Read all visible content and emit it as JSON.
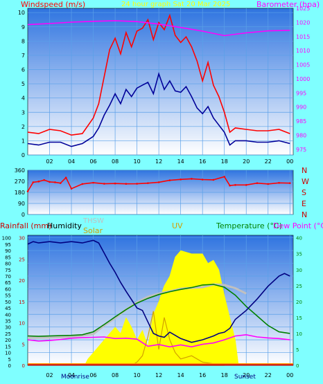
{
  "colors": {
    "frame": "#7fffff",
    "plot_top": "#2f74e0",
    "plot_bottom": "#ffffff",
    "grid": "#5aa0e8",
    "gust": "#ff0000",
    "wind": "#000099",
    "baro": "#ff00ff",
    "rain": "#cc0000",
    "humidity": "#000080",
    "solar": "#ffff00",
    "uv": "#d2a000",
    "temperature": "#008000",
    "dewpoint": "#ff00ff",
    "thsw": "#c0c0c0",
    "sun": "#ff9900",
    "dark_text": "#000000"
  },
  "chart_data": [
    {
      "type": "line",
      "title": "24 hour graph Sat   20 Mar 2025",
      "ylabel": "Windspeed (m/s)",
      "y2label": "Barometer (hpa)",
      "x_ticks": [
        "02",
        "04",
        "06",
        "08",
        "10",
        "12",
        "14",
        "16",
        "18",
        "20",
        "22",
        "00"
      ],
      "x_tick_hours": [
        2,
        4,
        6,
        8,
        10,
        12,
        14,
        16,
        18,
        20,
        22,
        24
      ],
      "xlim": [
        0,
        24.3
      ],
      "ylim": [
        0,
        10.3
      ],
      "y_ticks": [
        "0",
        "1",
        "2",
        "3",
        "4",
        "5",
        "6",
        "7",
        "8",
        "9",
        "10"
      ],
      "y2lim": [
        973,
        1025
      ],
      "y2_ticks": [
        "975",
        "980",
        "985",
        "990",
        "995",
        "1000",
        "1005",
        "1010",
        "1015",
        "1020",
        "1025"
      ],
      "grid": true,
      "series": [
        {
          "role": "gust",
          "x": [
            0,
            1,
            2,
            3,
            4,
            5,
            6,
            6.5,
            7,
            7.5,
            8,
            8.5,
            9,
            9.5,
            10,
            10.5,
            11,
            11.5,
            12,
            12.5,
            13,
            13.5,
            14,
            14.5,
            15,
            15.5,
            16,
            16.5,
            17,
            17.5,
            18,
            18.5,
            19,
            20,
            21,
            22,
            23,
            24
          ],
          "values": [
            1.6,
            1.5,
            1.8,
            1.7,
            1.4,
            1.5,
            2.6,
            3.6,
            5.5,
            7.4,
            8.2,
            7.1,
            8.6,
            7.6,
            8.7,
            8.9,
            9.5,
            8.1,
            9.3,
            8.8,
            9.8,
            8.4,
            7.9,
            8.3,
            7.6,
            6.6,
            5.2,
            6.5,
            4.9,
            4.1,
            3.0,
            1.6,
            1.9,
            1.8,
            1.7,
            1.7,
            1.8,
            1.5
          ]
        },
        {
          "role": "wind",
          "x": [
            0,
            1,
            2,
            3,
            4,
            5,
            6,
            6.5,
            7,
            7.5,
            8,
            8.5,
            9,
            9.5,
            10,
            10.5,
            11,
            11.5,
            12,
            12.5,
            13,
            13.5,
            14,
            14.5,
            15,
            15.5,
            16,
            16.5,
            17,
            17.5,
            18,
            18.5,
            19,
            20,
            21,
            22,
            23,
            24
          ],
          "values": [
            0.8,
            0.7,
            0.9,
            0.9,
            0.6,
            0.8,
            1.3,
            1.9,
            2.8,
            3.5,
            4.3,
            3.6,
            4.6,
            4.1,
            4.7,
            4.9,
            5.1,
            4.3,
            5.7,
            4.6,
            5.2,
            4.5,
            4.4,
            4.8,
            4.1,
            3.3,
            2.9,
            3.4,
            2.6,
            2.1,
            1.6,
            0.7,
            1.0,
            1.0,
            0.9,
            0.9,
            1.0,
            0.8
          ]
        },
        {
          "role": "baro",
          "x": [
            0,
            2,
            4,
            6,
            8,
            10,
            12,
            14,
            16,
            18,
            20,
            22,
            24
          ],
          "values": [
            1019.2,
            1019.6,
            1020.1,
            1020.4,
            1020.6,
            1020.3,
            1019.4,
            1018.2,
            1016.9,
            1015.3,
            1016.3,
            1017.0,
            1017.2
          ]
        }
      ]
    },
    {
      "type": "scatter",
      "ylim": [
        0,
        360
      ],
      "y_ticks": [
        "0",
        "90",
        "180",
        "270",
        "360"
      ],
      "y2_ticks": [
        "N",
        "E",
        "S",
        "W",
        "N"
      ],
      "xlim": [
        0,
        24.3
      ],
      "grid": true,
      "series": [
        {
          "role": "direction",
          "x": [
            0,
            0.5,
            1,
            1.5,
            2,
            2.5,
            3,
            3.5,
            4,
            5,
            6,
            7,
            8,
            9,
            10,
            11,
            12,
            13,
            14,
            15,
            16,
            17,
            18,
            18.5,
            19,
            20,
            21,
            22,
            23,
            24
          ],
          "values": [
            188,
            262,
            268,
            280,
            265,
            262,
            255,
            300,
            210,
            248,
            258,
            250,
            252,
            249,
            250,
            255,
            262,
            278,
            285,
            290,
            284,
            282,
            307,
            235,
            240,
            240,
            255,
            248,
            257,
            255
          ]
        }
      ]
    },
    {
      "type": "line",
      "legend": [
        "Rainfall (mm)",
        "Humidity",
        "THSW",
        "Solar",
        "UV",
        "Temperature (°C)",
        "Dew Point (°C)"
      ],
      "y_left_ticks": [
        "0",
        "5",
        "10",
        "15",
        "20",
        "25",
        "30",
        "35",
        "40",
        "45",
        "50",
        "55",
        "60",
        "65",
        "70",
        "75",
        "80",
        "85",
        "90",
        "95",
        "100"
      ],
      "y_left2_ticks": [
        "0",
        "5",
        "10",
        "15",
        "20",
        "25",
        "30"
      ],
      "y_right_ticks": [
        "0",
        "5",
        "10",
        "15",
        "20",
        "25",
        "30",
        "35",
        "40"
      ],
      "x_ticks": [
        "02",
        "04",
        "06",
        "08",
        "10",
        "12",
        "14",
        "16",
        "18",
        "20",
        "22",
        "00"
      ],
      "x_tick_hours": [
        2,
        4,
        6,
        8,
        10,
        12,
        14,
        16,
        18,
        20,
        22,
        24
      ],
      "xlim": [
        0,
        24.3
      ],
      "annotations": [
        "Moonrise",
        "Sunset"
      ],
      "series": [
        {
          "role": "humidity",
          "x": [
            0,
            0.5,
            1,
            2,
            3,
            4,
            5,
            6,
            6.5,
            7,
            7.5,
            8,
            8.5,
            9,
            10,
            10.5,
            11,
            11.5,
            12,
            12.5,
            13,
            14,
            15,
            16,
            17,
            17.5,
            18,
            18.5,
            19,
            20,
            21,
            22,
            23,
            23.5,
            24
          ],
          "values": [
            95,
            97,
            96,
            97,
            96,
            97,
            96,
            98,
            96,
            88,
            80,
            73,
            65,
            58,
            45,
            43,
            34,
            25,
            23,
            22,
            26,
            21,
            18,
            20,
            23,
            25,
            26,
            29,
            36,
            43,
            52,
            62,
            70,
            72,
            70
          ]
        },
        {
          "role": "temperature",
          "x": [
            0,
            1,
            2,
            3,
            4,
            5,
            6,
            7,
            8,
            9,
            10,
            11,
            12,
            13,
            14,
            15,
            16,
            17,
            18,
            19,
            20,
            21,
            22,
            23,
            24
          ],
          "values": [
            9.2,
            9.1,
            9.2,
            9.3,
            9.4,
            9.6,
            10.5,
            12.8,
            15.2,
            17.5,
            19.5,
            21,
            22.2,
            23.1,
            23.8,
            24.4,
            25.2,
            25.4,
            24.5,
            22,
            18.5,
            15.5,
            12.5,
            10.5,
            10.0
          ]
        },
        {
          "role": "thsw",
          "x": [
            0,
            2,
            4,
            6,
            7,
            8,
            9,
            10,
            11,
            12,
            13,
            14,
            15,
            16,
            17,
            18,
            19,
            20
          ],
          "values": [
            8.6,
            8.7,
            8.9,
            9.8,
            12.5,
            14.8,
            17.5,
            19.8,
            21.5,
            22.5,
            23.2,
            24.0,
            24.3,
            24.5,
            25.4,
            25.2,
            24.2,
            22.5
          ]
        },
        {
          "role": "dewpoint",
          "x": [
            0,
            1,
            2,
            3,
            4,
            5,
            6,
            7,
            8,
            9,
            10,
            11,
            12,
            13,
            14,
            15,
            16,
            17,
            18,
            19,
            20,
            21,
            22,
            23,
            24
          ],
          "values": [
            8.0,
            7.6,
            7.8,
            8.1,
            8.5,
            8.7,
            8.8,
            8.9,
            8.4,
            8.5,
            8.2,
            6.0,
            6.5,
            5.8,
            6.4,
            5.8,
            6.6,
            7.0,
            8.0,
            9.2,
            9.6,
            8.9,
            8.6,
            8.4,
            8.0
          ]
        },
        {
          "role": "solar",
          "x": [
            5.2,
            5.5,
            6,
            6.5,
            7,
            7.5,
            8,
            8.5,
            9,
            9.5,
            10,
            10.5,
            11,
            11.5,
            12,
            12.5,
            13,
            13.5,
            14,
            15,
            16,
            16.5,
            17,
            17.5,
            18,
            18.5,
            19,
            19.3
          ],
          "values": [
            0,
            2,
            4,
            6,
            8,
            10,
            12,
            10,
            15,
            12,
            8,
            11,
            6,
            16,
            20,
            25,
            28,
            34,
            36,
            35,
            35,
            32,
            33,
            30,
            22,
            15,
            8,
            0
          ]
        },
        {
          "role": "uv",
          "x": [
            9.5,
            10,
            10.5,
            11,
            11.5,
            12,
            12.5,
            13,
            13.5,
            14,
            15,
            16,
            17,
            18
          ],
          "values": [
            0,
            1,
            3,
            9,
            17,
            5,
            15,
            8,
            4,
            2,
            3,
            1,
            0.5,
            0
          ]
        }
      ]
    }
  ],
  "labels": {
    "title": "24 hour graph Sat   20 Mar 2025",
    "windspeed": "Windspeed (m/s)",
    "barometer": "Barometer (hpa)",
    "rainfall": "Rainfall (mm)",
    "humidity": "Humidity",
    "thsw": "THSW",
    "solar": "Solar",
    "uv": "UV",
    "temperature": "Temperature (°C)",
    "dewpoint": "Dew Point (°C)",
    "moonrise": "Moonrise",
    "sunset": "Sunset"
  }
}
